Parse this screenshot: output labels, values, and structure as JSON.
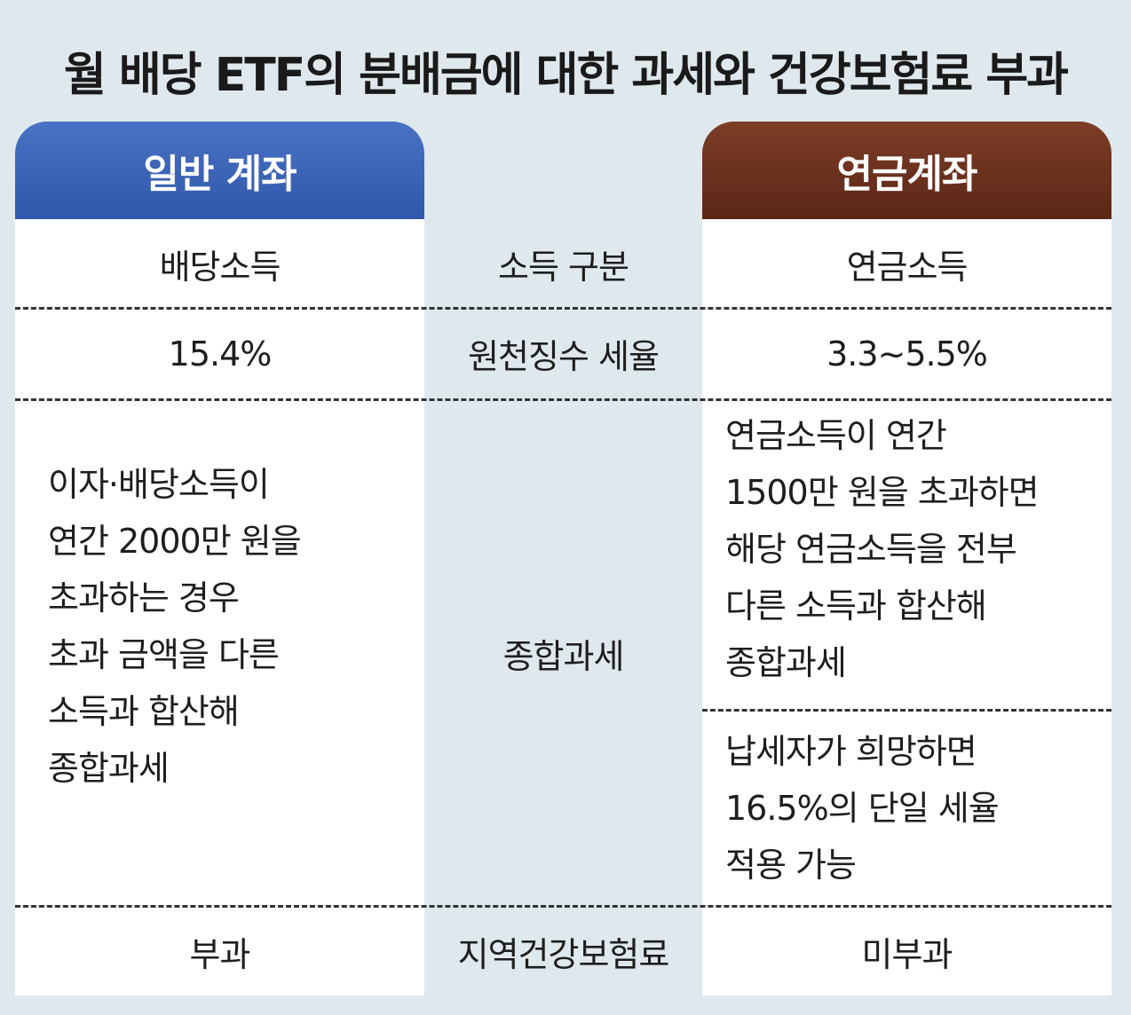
{
  "title": "월 배당 ETF의 분배금에 대한 과세와 건강보험료 부과",
  "columns": {
    "left_header": "일반 계좌",
    "right_header": "연금계좌"
  },
  "rows": {
    "income_type": {
      "label": "소득 구분",
      "general": "배당소득",
      "pension": "연금소득"
    },
    "withholding_rate": {
      "label": "원천징수 세율",
      "general": "15.4%",
      "pension": "3.3~5.5%"
    },
    "comprehensive_tax": {
      "label": "종합과세",
      "general_lines": [
        "이자·배당소득이",
        "연간 2000만 원을",
        "초과하는 경우",
        "초과 금액을 다른",
        "소득과 합산해",
        "종합과세"
      ],
      "pension_lines_a": [
        "연금소득이 연간",
        "1500만 원을 초과하면",
        "해당 연금소득을 전부",
        "다른 소득과 합산해",
        "종합과세"
      ],
      "pension_lines_b": [
        "납세자가 희망하면",
        "16.5%의 단일 세율",
        "적용 가능"
      ]
    },
    "health_insurance": {
      "label": "지역건강보험료",
      "general": "부과",
      "pension": "미부과"
    }
  },
  "colors": {
    "general_header": "#3a62b5",
    "pension_header": "#6a3020",
    "background": "#dfe8ec"
  }
}
